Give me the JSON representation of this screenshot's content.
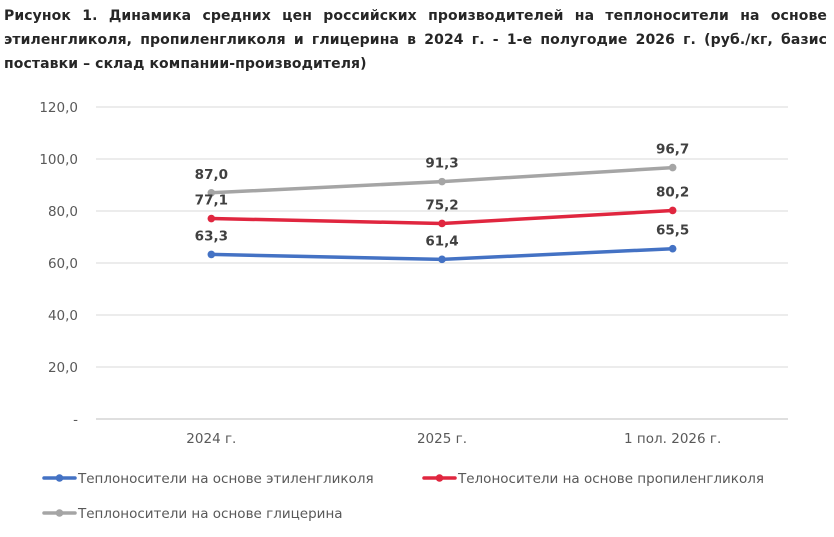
{
  "title": "Рисунок 1. Динамика средних цен российских производителей на теплоносители на основе этиленгликоля, пропиленгликоля и глицерина в 2024 г. - 1-е полугодие 2026 г. (руб./кг, базис поставки – склад компании-производителя)",
  "chart_data": {
    "type": "line",
    "title": "Рисунок 1. Динамика средних цен российских производителей на теплоносители на основе этиленгликоля, пропиленгликоля и глицерина в 2024 г. - 1-е полугодие 2026 г. (руб./кг, базис поставки – склад компании-производителя)",
    "xlabel": "",
    "ylabel": "",
    "categories": [
      "2024 г.",
      "2025 г.",
      "1 пол. 2026 г."
    ],
    "ylim": [
      0,
      120
    ],
    "yticks": [
      0,
      20,
      40,
      60,
      80,
      100,
      120
    ],
    "ytick_labels": [
      "-",
      "20,0",
      "40,0",
      "60,0",
      "80,0",
      "100,0",
      "120,0"
    ],
    "grid": true,
    "legend_position": "bottom",
    "series": [
      {
        "name": "Теплоносители на основе этиленгликоля",
        "values": [
          63.3,
          61.4,
          65.5
        ],
        "labels": [
          "63,3",
          "61,4",
          "65,5"
        ],
        "color": "#4472c4"
      },
      {
        "name": "Телоносители на основе пропиленгликоля",
        "values": [
          77.1,
          75.2,
          80.2
        ],
        "labels": [
          "77,1",
          "75,2",
          "80,2"
        ],
        "color": "#e0263f"
      },
      {
        "name": "Теплоносители на основе глицерина",
        "values": [
          87.0,
          91.3,
          96.7
        ],
        "labels": [
          "87,0",
          "91,3",
          "96,7"
        ],
        "color": "#a5a5a5"
      }
    ]
  }
}
